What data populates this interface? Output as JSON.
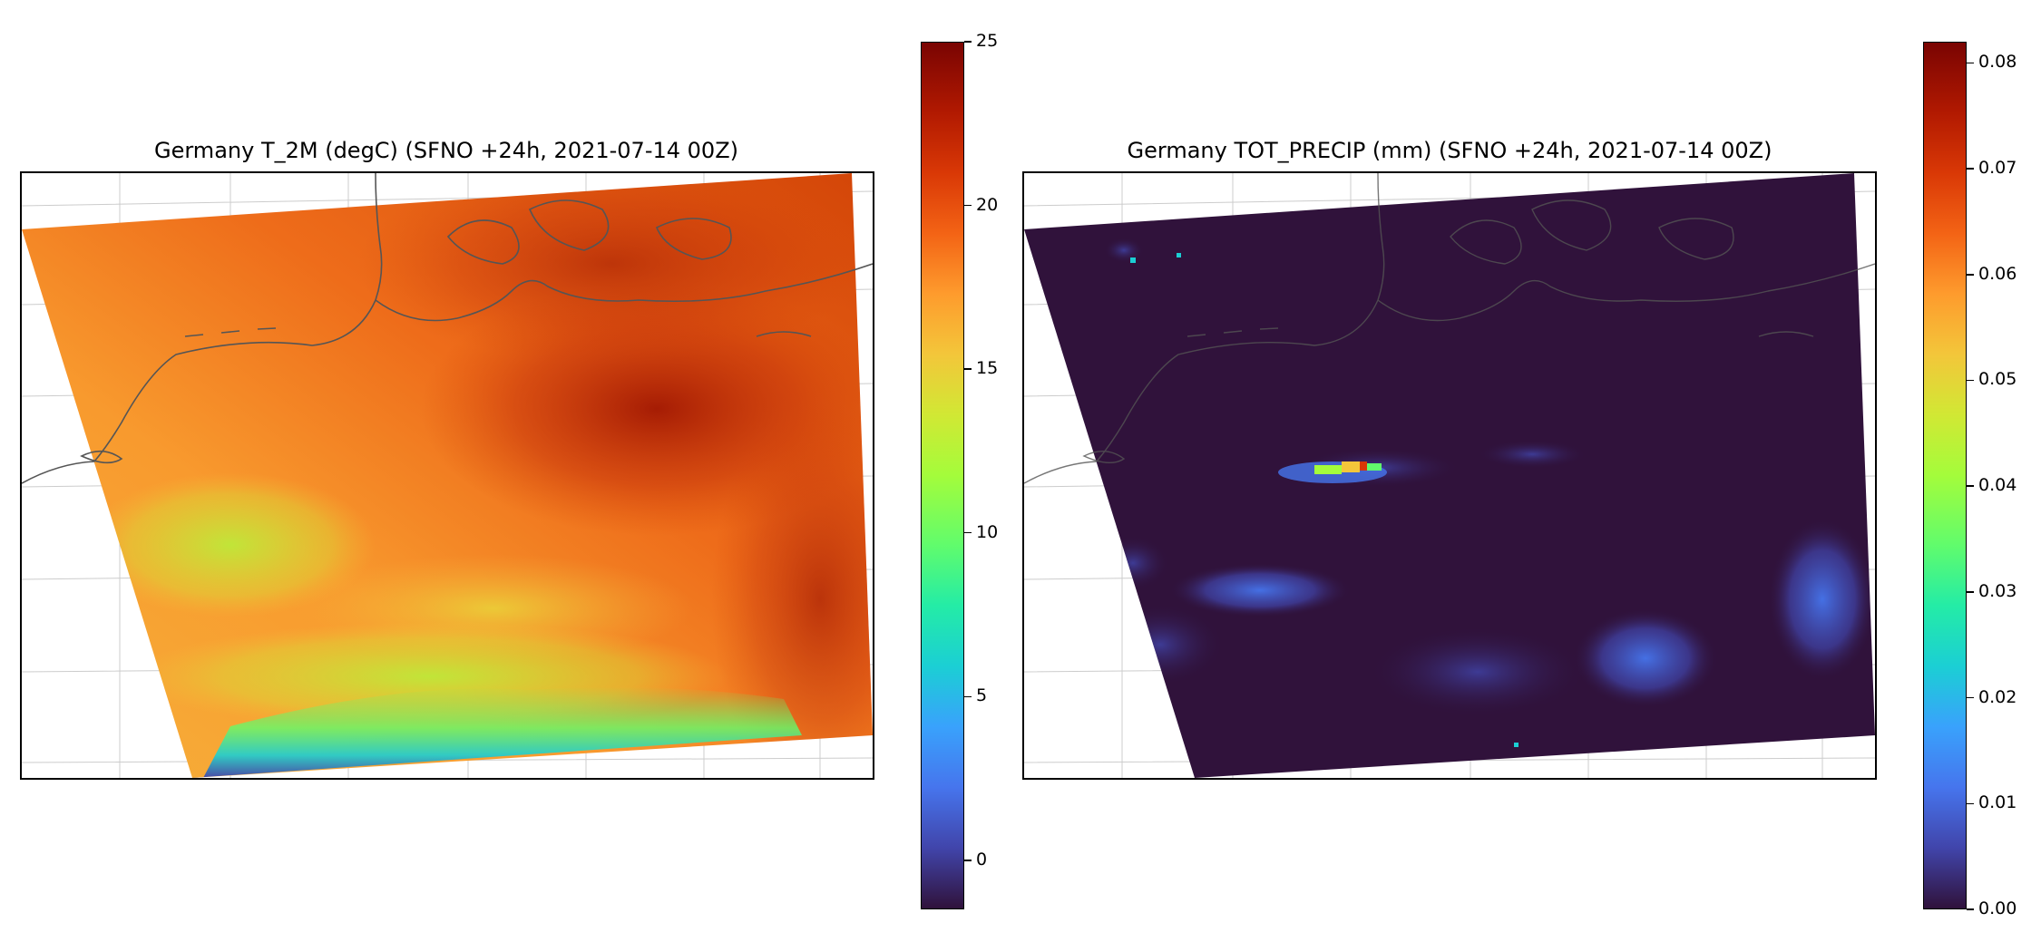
{
  "maps": [
    {
      "title": "Germany T_2M (degC)  (SFNO +24h, 2021-07-14 00Z)",
      "variable": "T_2M",
      "units": "degC",
      "colormap": "turbo",
      "colorbar": {
        "min": -1.5,
        "max": 25,
        "ticks": [
          0,
          5,
          10,
          15,
          20,
          25
        ]
      }
    },
    {
      "title": "Germany TOT_PRECIP (mm)  (SFNO +24h, 2021-07-14 00Z)",
      "variable": "TOT_PRECIP",
      "units": "mm",
      "colormap": "turbo",
      "colorbar": {
        "min": 0,
        "max": 0.082,
        "ticks": [
          "0.00",
          "0.01",
          "0.02",
          "0.03",
          "0.04",
          "0.05",
          "0.06",
          "0.07",
          "0.08"
        ]
      }
    }
  ],
  "colors": {
    "coastline": "#555555",
    "gridline": "#cccccc",
    "precip_background": "#30123b",
    "turbo_stops": [
      "#30123b",
      "#4145ab",
      "#4675ed",
      "#39a2fc",
      "#1bcfd4",
      "#24eca6",
      "#61fc6c",
      "#a4fc3b",
      "#d1e834",
      "#f3c63a",
      "#fe9b2d",
      "#f36315",
      "#d93806",
      "#b11901",
      "#7a0402"
    ]
  }
}
